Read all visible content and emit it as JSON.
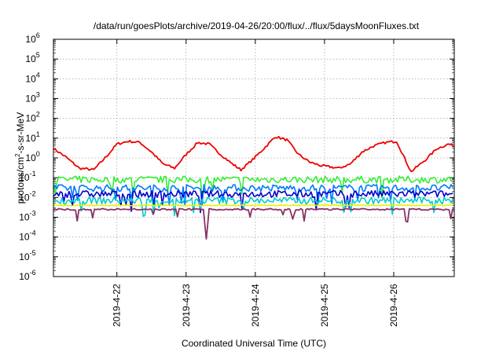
{
  "chart_data": {
    "type": "line",
    "title": "/data/run/goesPlots/archive/2019-04-26/20:00/flux/../flux/5daysMoonFluxes.txt",
    "xlabel": "Coordinated Universal Time (UTC)",
    "ylabel_parts": {
      "pre": "protons/cm",
      "sup": "2",
      "post": "-s-sr-MeV"
    },
    "x_scale": "date",
    "xlim": [
      "2019-04-21T02:00",
      "2019-04-26T21:00"
    ],
    "x_ticks": [
      "2019-4-22",
      "2019-4-23",
      "2019-4-24",
      "2019-4-25",
      "2019-4-26"
    ],
    "y_scale": "log",
    "ylim": [
      1e-06,
      1000000.0
    ],
    "y_ticks": [
      {
        "base": "10",
        "exp": "-6"
      },
      {
        "base": "10",
        "exp": "-5"
      },
      {
        "base": "10",
        "exp": "-4"
      },
      {
        "base": "10",
        "exp": "-3"
      },
      {
        "base": "10",
        "exp": "-2"
      },
      {
        "base": "10",
        "exp": "-1"
      },
      {
        "base": "10",
        "exp": "0"
      },
      {
        "base": "10",
        "exp": "1"
      },
      {
        "base": "10",
        "exp": "2"
      },
      {
        "base": "10",
        "exp": "3"
      },
      {
        "base": "10",
        "exp": "4"
      },
      {
        "base": "10",
        "exp": "5"
      },
      {
        "base": "10",
        "exp": "6"
      }
    ],
    "grid": true,
    "legend": "none",
    "series": [
      {
        "color": "#ee0000",
        "x": [
          "2019-04-21T02:00",
          "2019-04-21T06:00",
          "2019-04-21T11:00",
          "2019-04-21T16:00",
          "2019-04-21T21:00",
          "2019-04-22T00:00",
          "2019-04-22T04:00",
          "2019-04-22T08:00",
          "2019-04-22T12:00",
          "2019-04-22T16:00",
          "2019-04-22T20:00",
          "2019-04-23T00:00",
          "2019-04-23T04:00",
          "2019-04-23T08:00",
          "2019-04-23T12:00",
          "2019-04-23T16:00",
          "2019-04-23T19:00",
          "2019-04-23T23:00",
          "2019-04-24T03:00",
          "2019-04-24T07:00",
          "2019-04-24T11:00",
          "2019-04-24T15:00",
          "2019-04-24T19:00",
          "2019-04-24T23:00",
          "2019-04-25T02:00",
          "2019-04-25T05:00",
          "2019-04-25T09:00",
          "2019-04-25T13:00",
          "2019-04-25T17:00",
          "2019-04-25T21:00",
          "2019-04-26T01:00",
          "2019-04-26T06:00",
          "2019-04-26T11:00",
          "2019-04-26T15:00",
          "2019-04-26T19:00",
          "2019-04-26T21:00"
        ],
        "y": [
          3,
          1.2,
          0.3,
          0.25,
          1.5,
          5,
          7,
          6,
          2,
          0.5,
          0.3,
          1.5,
          6,
          5,
          1.5,
          0.5,
          0.25,
          0.8,
          3,
          12,
          8,
          1.5,
          0.6,
          0.4,
          0.35,
          0.3,
          0.5,
          2,
          4,
          6,
          7,
          0.2,
          0.8,
          3,
          5,
          4
        ]
      },
      {
        "color": "#33ee33",
        "x": [
          "2019-04-21T02:00",
          "2019-04-26T21:00"
        ],
        "y": [
          0.08,
          0.08
        ]
      },
      {
        "color": "#0077ff",
        "x": [
          "2019-04-21T02:00",
          "2019-04-26T21:00"
        ],
        "y": [
          0.03,
          0.03
        ]
      },
      {
        "color": "#0000cc",
        "x": [
          "2019-04-21T02:00",
          "2019-04-26T21:00"
        ],
        "y": [
          0.015,
          0.015
        ]
      },
      {
        "color": "#00cccc",
        "x": [
          "2019-04-21T02:00",
          "2019-04-26T21:00"
        ],
        "y": [
          0.007,
          0.007
        ]
      },
      {
        "color": "#eeee00",
        "x": [
          "2019-04-21T02:00",
          "2019-04-26T21:00"
        ],
        "y": [
          0.004,
          0.004
        ]
      },
      {
        "color": "#883366",
        "x": [
          "2019-04-21T02:00",
          "2019-04-21T12:00",
          "2019-04-22T00:00",
          "2019-04-22T12:00",
          "2019-04-23T00:00",
          "2019-04-23T06:00",
          "2019-04-23T07:00",
          "2019-04-23T08:00",
          "2019-04-23T12:00",
          "2019-04-24T00:00",
          "2019-04-24T12:00",
          "2019-04-24T13:00",
          "2019-04-24T14:00",
          "2019-04-25T00:00",
          "2019-04-25T12:00",
          "2019-04-26T00:00",
          "2019-04-26T12:00",
          "2019-04-26T21:00"
        ],
        "y": [
          0.0025,
          0.0025,
          0.0025,
          0.0025,
          0.0025,
          0.0025,
          8e-05,
          0.0025,
          0.0025,
          0.0025,
          0.0025,
          0.0008,
          0.0025,
          0.0025,
          0.0025,
          0.0025,
          0.0025,
          0.0025
        ]
      }
    ]
  }
}
